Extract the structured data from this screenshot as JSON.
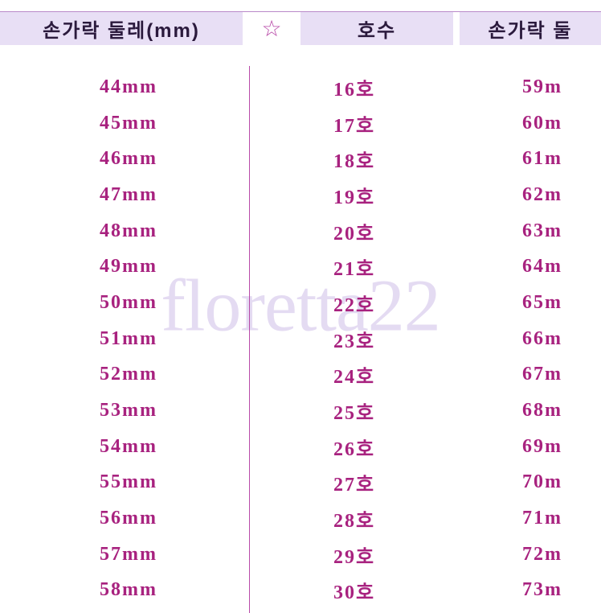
{
  "watermark": "floretta22",
  "colors": {
    "header_bg": "#e8dff5",
    "header_text": "#2b1a3d",
    "cell_text": "#a8227f",
    "divider": "#b84aa8",
    "watermark": "#d6c9ec",
    "background": "#ffffff"
  },
  "headers": {
    "left": "손가락 둘레(mm)",
    "star": "☆",
    "mid": "호수",
    "right": "손가락 둘"
  },
  "columns": {
    "left": [
      "44mm",
      "45mm",
      "46mm",
      "47mm",
      "48mm",
      "49mm",
      "50mm",
      "51mm",
      "52mm",
      "53mm",
      "54mm",
      "55mm",
      "56mm",
      "57mm",
      "58mm"
    ],
    "mid": [
      "16호",
      "17호",
      "18호",
      "19호",
      "20호",
      "21호",
      "22호",
      "23호",
      "24호",
      "25호",
      "26호",
      "27호",
      "28호",
      "29호",
      "30호"
    ],
    "right": [
      "59m",
      "60m",
      "61m",
      "62m",
      "63m",
      "64m",
      "65m",
      "66m",
      "67m",
      "68m",
      "69m",
      "70m",
      "71m",
      "72m",
      "73m"
    ]
  },
  "typography": {
    "header_fontsize": 24,
    "cell_fontsize": 24,
    "watermark_fontsize": 92
  }
}
